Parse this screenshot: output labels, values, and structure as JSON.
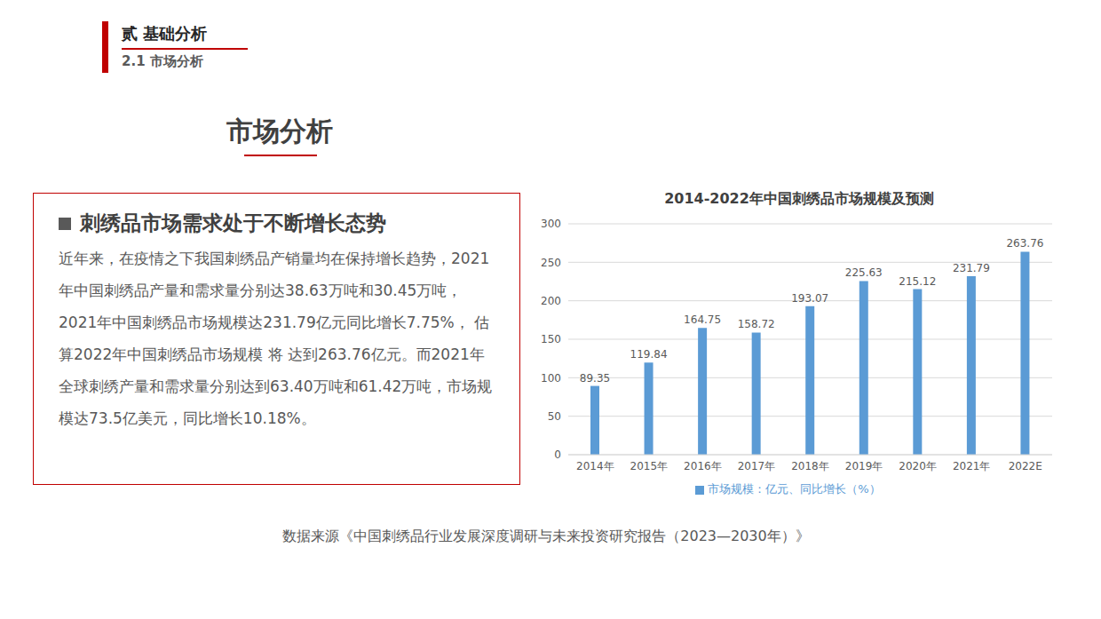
{
  "header": {
    "section": "贰 基础分析",
    "subsection": "2.1 市场分析"
  },
  "title": "市场分析",
  "text_box": {
    "heading": "刺绣品市场需求处于不断增长态势",
    "body": "近年来，在疫情之下我国刺绣品产销量均在保持增长趋势，2021年中国刺绣品产量和需求量分别达38.63万吨和30.45万吨，2021年中国刺绣品市场规模达231.79亿元同比增长7.75%， 估算2022年中国刺绣品市场规模 将 达到263.76亿元。而2021年全球刺绣产量和需求量分别达到63.40万吨和61.42万吨，市场规模达73.5亿美元，同比增长10.18%。"
  },
  "chart_data": {
    "type": "bar",
    "title": "2014-2022年中国刺绣品市场规模及预测",
    "categories": [
      "2014年",
      "2015年",
      "2016年",
      "2017年",
      "2018年",
      "2019年",
      "2020年",
      "2021年",
      "2022E"
    ],
    "series": [
      {
        "name": "市场规模：亿元、同比增长（%）",
        "color": "#5B9BD5",
        "values": [
          89.35,
          119.84,
          164.75,
          158.72,
          193.07,
          225.63,
          215.12,
          231.79,
          263.76
        ]
      }
    ],
    "ylim": [
      0,
      300
    ],
    "yticks": [
      0,
      50,
      100,
      150,
      200,
      250,
      300
    ],
    "grid": true,
    "legend": "bottom",
    "data_labels": true
  },
  "source": "数据来源《中国刺绣品行业发展深度调研与未来投资研究报告（2023—2030年）》"
}
